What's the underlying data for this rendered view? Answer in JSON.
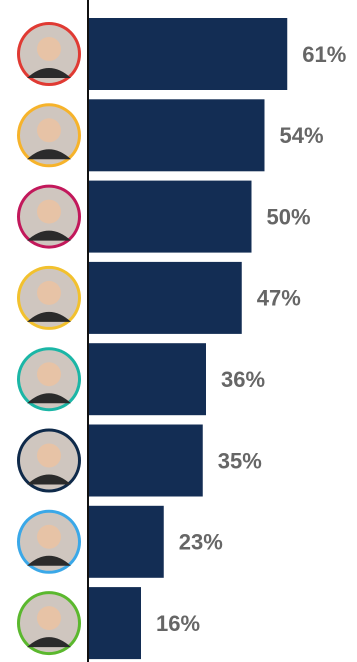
{
  "chart_data": {
    "type": "bar",
    "orientation": "horizontal",
    "values": [
      61,
      54,
      50,
      47,
      36,
      35,
      23,
      16
    ],
    "value_labels": [
      "61%",
      "54%",
      "50%",
      "47%",
      "36%",
      "35%",
      "23%",
      "16%"
    ],
    "color": "#132d54",
    "avatar_colors": [
      "#e03a33",
      "#f6b32b",
      "#c2185b",
      "#f2c12e",
      "#1bb6a6",
      "#0f2a4a",
      "#3aa8e8",
      "#5bb82e"
    ]
  }
}
